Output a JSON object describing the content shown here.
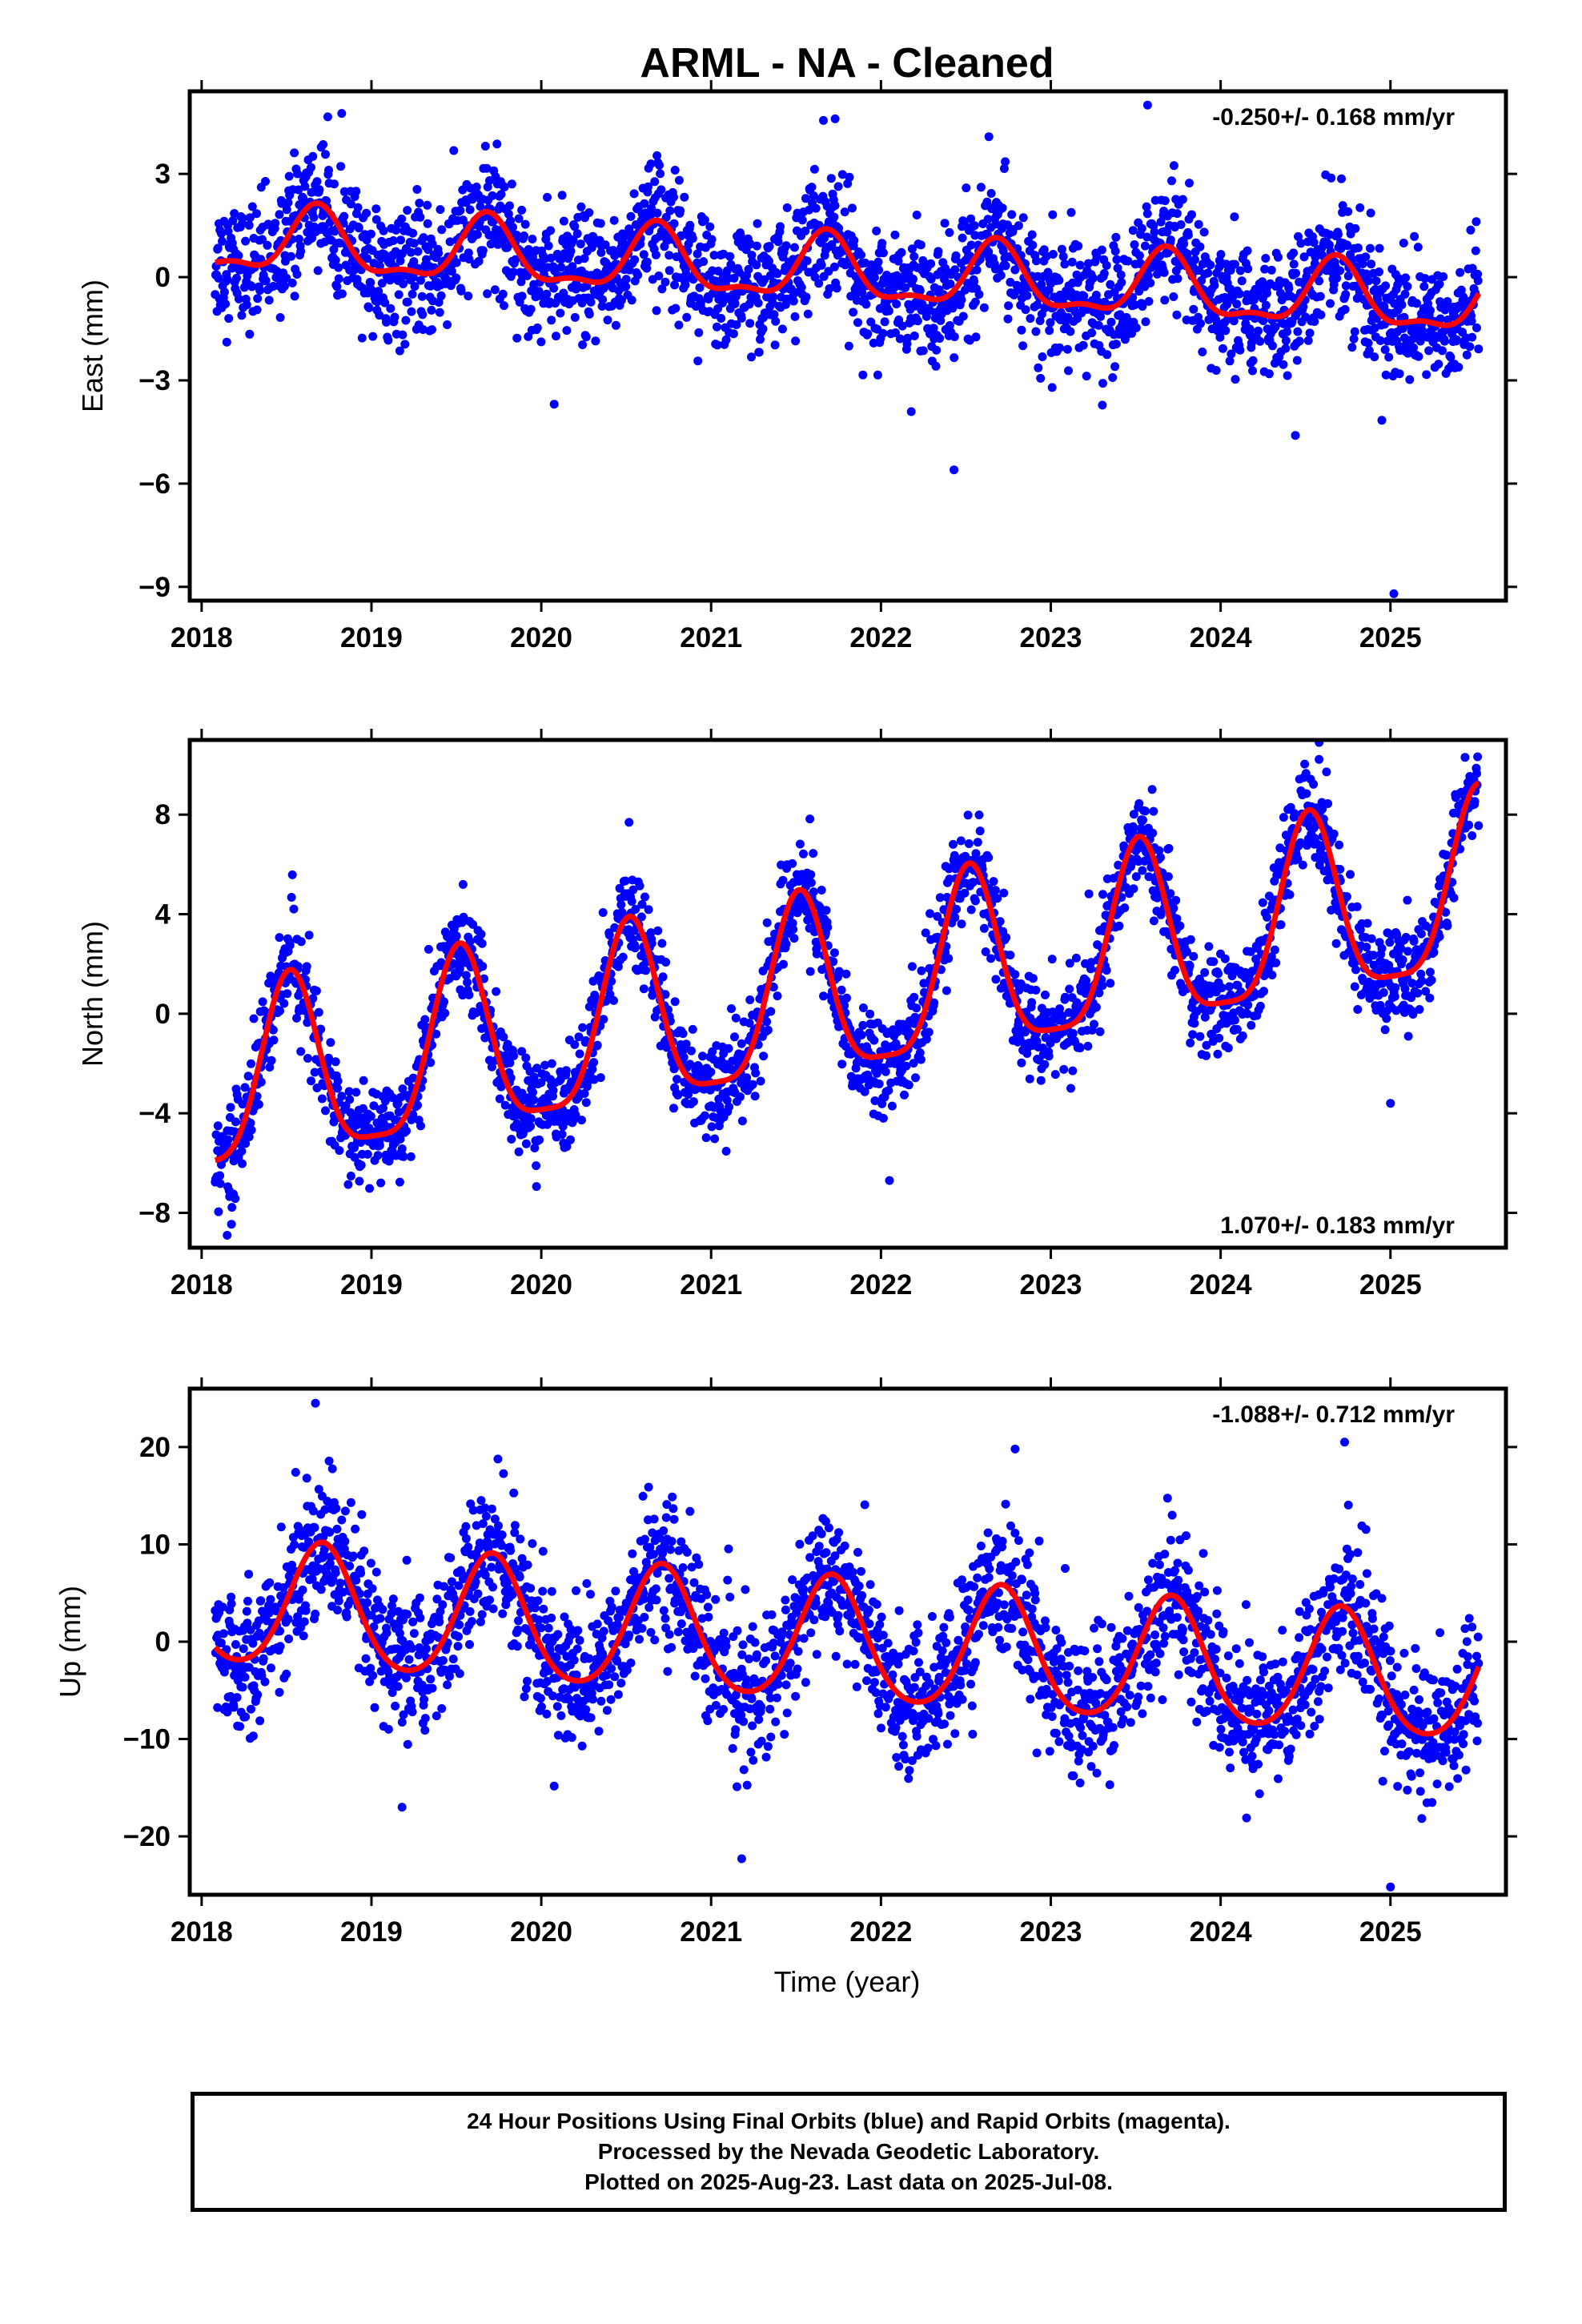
{
  "title": "ARML  - NA - Cleaned",
  "xlabel": "Time (year)",
  "colors": {
    "points": "#0000ff",
    "fit": "#ff0000",
    "frame": "#000000"
  },
  "footer": {
    "line1": "24 Hour Positions Using Final Orbits (blue) and Rapid Orbits (magenta).",
    "line2": "Processed by the Nevada Geodetic Laboratory.",
    "line3": "Plotted on 2025-Aug-23. Last data on 2025-Jul-08."
  },
  "chart_data": [
    {
      "type": "scatter",
      "panel": "east",
      "ylabel": "East (mm)",
      "rate_label": "-0.250+/- 0.168 mm/yr",
      "rate_label_position": "top-right",
      "xlim": [
        2017.93,
        2025.68
      ],
      "ylim": [
        -9.4,
        5.4
      ],
      "x_ticks": [
        2018,
        2019,
        2020,
        2021,
        2022,
        2023,
        2024,
        2025
      ],
      "y_ticks": [
        3,
        0,
        -3,
        -6,
        -9
      ],
      "grid": false,
      "series": [
        {
          "kind": "points",
          "x_start": 2018.08,
          "x_end": 2025.52,
          "mean_at_start": 1.05,
          "trend_per_year": -0.25,
          "annual_amplitude": 0.9,
          "annual_peak": 0.68,
          "semiannual_amplitude": 0.35,
          "noise_sd": 0.9
        },
        {
          "kind": "fit_line",
          "x_start": 2018.08,
          "x_end": 2025.52,
          "mean_at_start": 1.05,
          "trend_per_year": -0.25,
          "annual_amplitude": 0.9,
          "annual_peak": 0.68,
          "semiannual_amplitude": 0.35
        }
      ],
      "outliers": [
        [
          2022.43,
          -5.6
        ],
        [
          2025.02,
          -9.2
        ],
        [
          2024.44,
          -4.6
        ],
        [
          2023.57,
          5.0
        ],
        [
          2021.73,
          4.6
        ]
      ]
    },
    {
      "type": "scatter",
      "panel": "north",
      "ylabel": "North (mm)",
      "rate_label": "1.070+/- 0.183 mm/yr",
      "rate_label_position": "bottom-right",
      "xlim": [
        2017.93,
        2025.68
      ],
      "ylim": [
        -9.4,
        11.0
      ],
      "x_ticks": [
        2018,
        2019,
        2020,
        2021,
        2022,
        2023,
        2024,
        2025
      ],
      "y_ticks": [
        8,
        4,
        0,
        -4,
        -8
      ],
      "grid": false,
      "series": [
        {
          "kind": "points",
          "x_start": 2018.08,
          "x_end": 2025.52,
          "mean_at_start": -3.2,
          "trend_per_year": 1.07,
          "annual_amplitude": 3.6,
          "annual_peak": 0.52,
          "semiannual_amplitude": 0.9,
          "noise_sd": 1.0
        },
        {
          "kind": "fit_line",
          "x_start": 2018.08,
          "x_end": 2025.52,
          "mean_at_start": -3.2,
          "trend_per_year": 1.07,
          "annual_amplitude": 3.6,
          "annual_peak": 0.52,
          "semiannual_amplitude": 0.9
        }
      ],
      "outliers": [
        [
          2022.05,
          -6.7
        ],
        [
          2025.0,
          -3.6
        ],
        [
          2018.15,
          -8.9
        ],
        [
          2024.58,
          10.9
        ]
      ]
    },
    {
      "type": "scatter",
      "panel": "up",
      "ylabel": "Up (mm)",
      "rate_label": "-1.088+/- 0.712 mm/yr",
      "rate_label_position": "top-right",
      "xlim": [
        2017.93,
        2025.68
      ],
      "ylim": [
        -26,
        26
      ],
      "x_ticks": [
        2018,
        2019,
        2020,
        2021,
        2022,
        2023,
        2024,
        2025
      ],
      "y_ticks": [
        20,
        10,
        0,
        -10,
        -20
      ],
      "grid": false,
      "series": [
        {
          "kind": "points",
          "x_start": 2018.08,
          "x_end": 2025.52,
          "mean_at_start": 3.8,
          "trend_per_year": -1.088,
          "annual_amplitude": 6.3,
          "annual_peak": 0.71,
          "semiannual_amplitude": 0.8,
          "noise_sd": 3.6
        },
        {
          "kind": "fit_line",
          "x_start": 2018.08,
          "x_end": 2025.52,
          "mean_at_start": 3.8,
          "trend_per_year": -1.088,
          "annual_amplitude": 6.3,
          "annual_peak": 0.71,
          "semiannual_amplitude": 0.8
        }
      ],
      "outliers": [
        [
          2018.67,
          24.5
        ],
        [
          2024.73,
          20.5
        ],
        [
          2022.79,
          19.8
        ],
        [
          2025.0,
          -25.2
        ],
        [
          2021.18,
          -22.3
        ],
        [
          2019.18,
          -17.0
        ]
      ]
    }
  ]
}
